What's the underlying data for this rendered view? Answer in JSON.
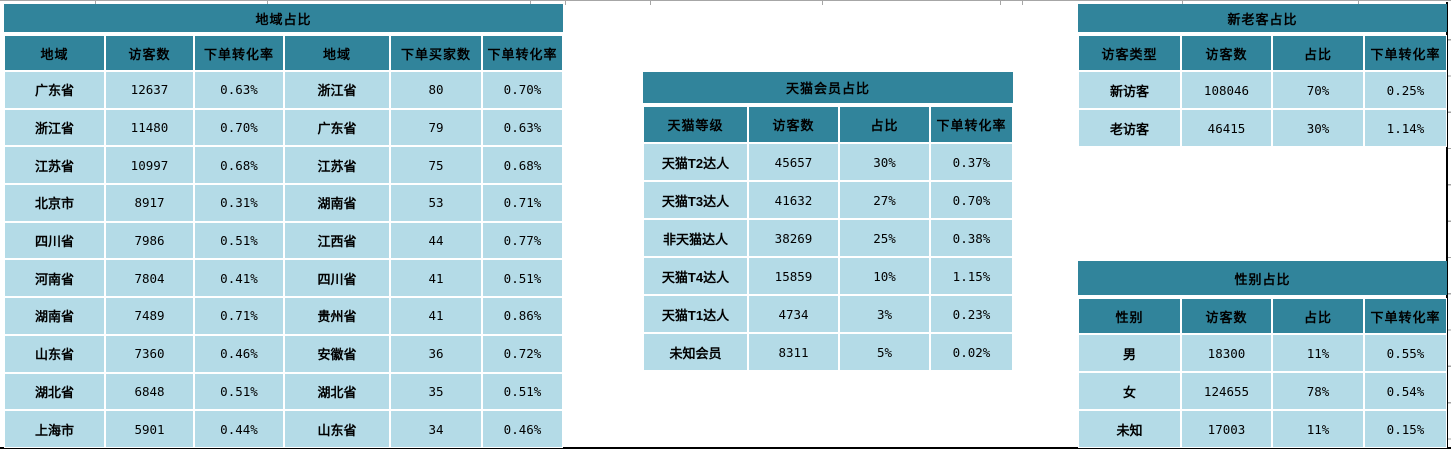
{
  "colors": {
    "header_teal": "#31849b",
    "cell_blue": "#b4dbe7",
    "gridline_gray": "#a6a6a6",
    "print_border_black": "#000000",
    "text": "#000000",
    "page_background": "#ffffff"
  },
  "tables": {
    "region": {
      "title": "地域占比",
      "headers": [
        "地域",
        "访客数",
        "下单转化率",
        "地域",
        "下单买家数",
        "下单转化率"
      ],
      "rows": [
        [
          "广东省",
          "12637",
          "0.63%",
          "浙江省",
          "80",
          "0.70%"
        ],
        [
          "浙江省",
          "11480",
          "0.70%",
          "广东省",
          "79",
          "0.63%"
        ],
        [
          "江苏省",
          "10997",
          "0.68%",
          "江苏省",
          "75",
          "0.68%"
        ],
        [
          "北京市",
          "8917",
          "0.31%",
          "湖南省",
          "53",
          "0.71%"
        ],
        [
          "四川省",
          "7986",
          "0.51%",
          "江西省",
          "44",
          "0.77%"
        ],
        [
          "河南省",
          "7804",
          "0.41%",
          "四川省",
          "41",
          "0.51%"
        ],
        [
          "湖南省",
          "7489",
          "0.71%",
          "贵州省",
          "41",
          "0.86%"
        ],
        [
          "山东省",
          "7360",
          "0.46%",
          "安徽省",
          "36",
          "0.72%"
        ],
        [
          "湖北省",
          "6848",
          "0.51%",
          "湖北省",
          "35",
          "0.51%"
        ],
        [
          "上海市",
          "5901",
          "0.44%",
          "山东省",
          "34",
          "0.46%"
        ]
      ]
    },
    "tmall_member": {
      "title": "天猫会员占比",
      "headers": [
        "天猫等级",
        "访客数",
        "占比",
        "下单转化率"
      ],
      "rows": [
        [
          "天猫T2达人",
          "45657",
          "30%",
          "0.37%"
        ],
        [
          "天猫T3达人",
          "41632",
          "27%",
          "0.70%"
        ],
        [
          "非天猫达人",
          "38269",
          "25%",
          "0.38%"
        ],
        [
          "天猫T4达人",
          "15859",
          "10%",
          "1.15%"
        ],
        [
          "天猫T1达人",
          "4734",
          "3%",
          "0.23%"
        ],
        [
          "未知会员",
          "8311",
          "5%",
          "0.02%"
        ]
      ]
    },
    "new_old": {
      "title": "新老客占比",
      "headers": [
        "访客类型",
        "访客数",
        "占比",
        "下单转化率"
      ],
      "rows": [
        [
          "新访客",
          "108046",
          "70%",
          "0.25%"
        ],
        [
          "老访客",
          "46415",
          "30%",
          "1.14%"
        ]
      ]
    },
    "gender": {
      "title": "性别占比",
      "headers": [
        "性别",
        "访客数",
        "占比",
        "下单转化率"
      ],
      "rows": [
        [
          "男",
          "18300",
          "11%",
          "0.55%"
        ],
        [
          "女",
          "124655",
          "78%",
          "0.54%"
        ],
        [
          "未知",
          "17003",
          "11%",
          "0.15%"
        ]
      ]
    }
  }
}
